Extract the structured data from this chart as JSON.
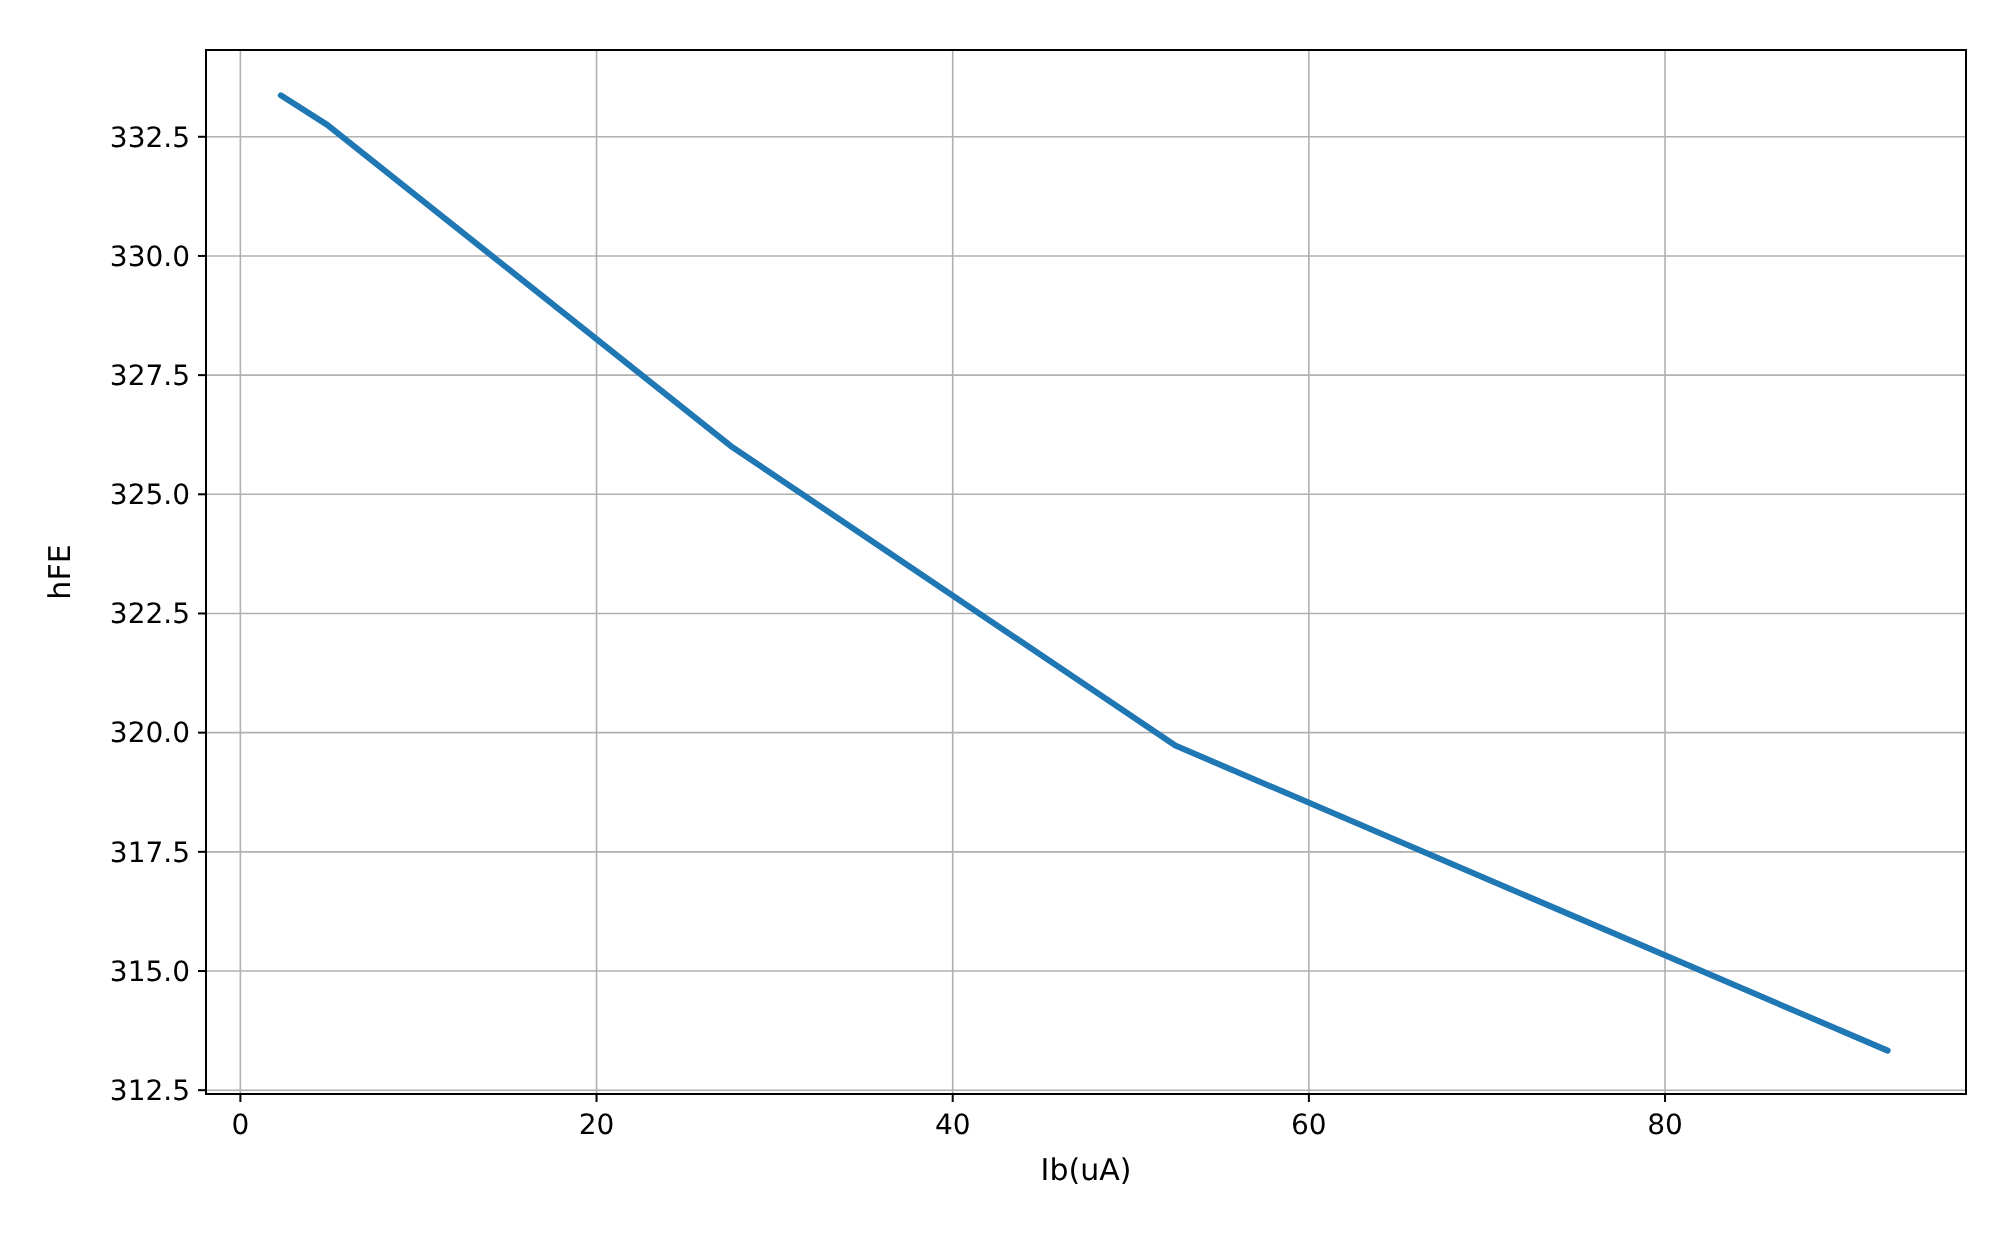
{
  "chart_data": {
    "type": "line",
    "xlabel": "Ib(uA)",
    "ylabel": "hFE",
    "x": [
      2.27,
      4.88,
      27.55,
      52.5,
      92.5
    ],
    "series": [
      {
        "color": "#1f77b4",
        "values": [
          333.37,
          332.75,
          326.01,
          319.73,
          313.33
        ]
      }
    ],
    "xlim": [
      -1.93,
      96.9
    ],
    "xticks": [
      0,
      20,
      40,
      60,
      80
    ],
    "ylim": [
      312.42,
      334.32
    ],
    "yticks": [
      {
        "value": 312.5,
        "label": "312.5"
      },
      {
        "value": 315,
        "label": "315.0"
      },
      {
        "value": 317.5,
        "label": "317.5"
      },
      {
        "value": 320,
        "label": "320.0"
      },
      {
        "value": 322.5,
        "label": "322.5"
      },
      {
        "value": 325,
        "label": "325.0"
      },
      {
        "value": 327.5,
        "label": "327.5"
      },
      {
        "value": 330,
        "label": "330.0"
      },
      {
        "value": 332.5,
        "label": "332.5"
      }
    ],
    "grid": true,
    "marker": "none",
    "line_style": "solid"
  }
}
